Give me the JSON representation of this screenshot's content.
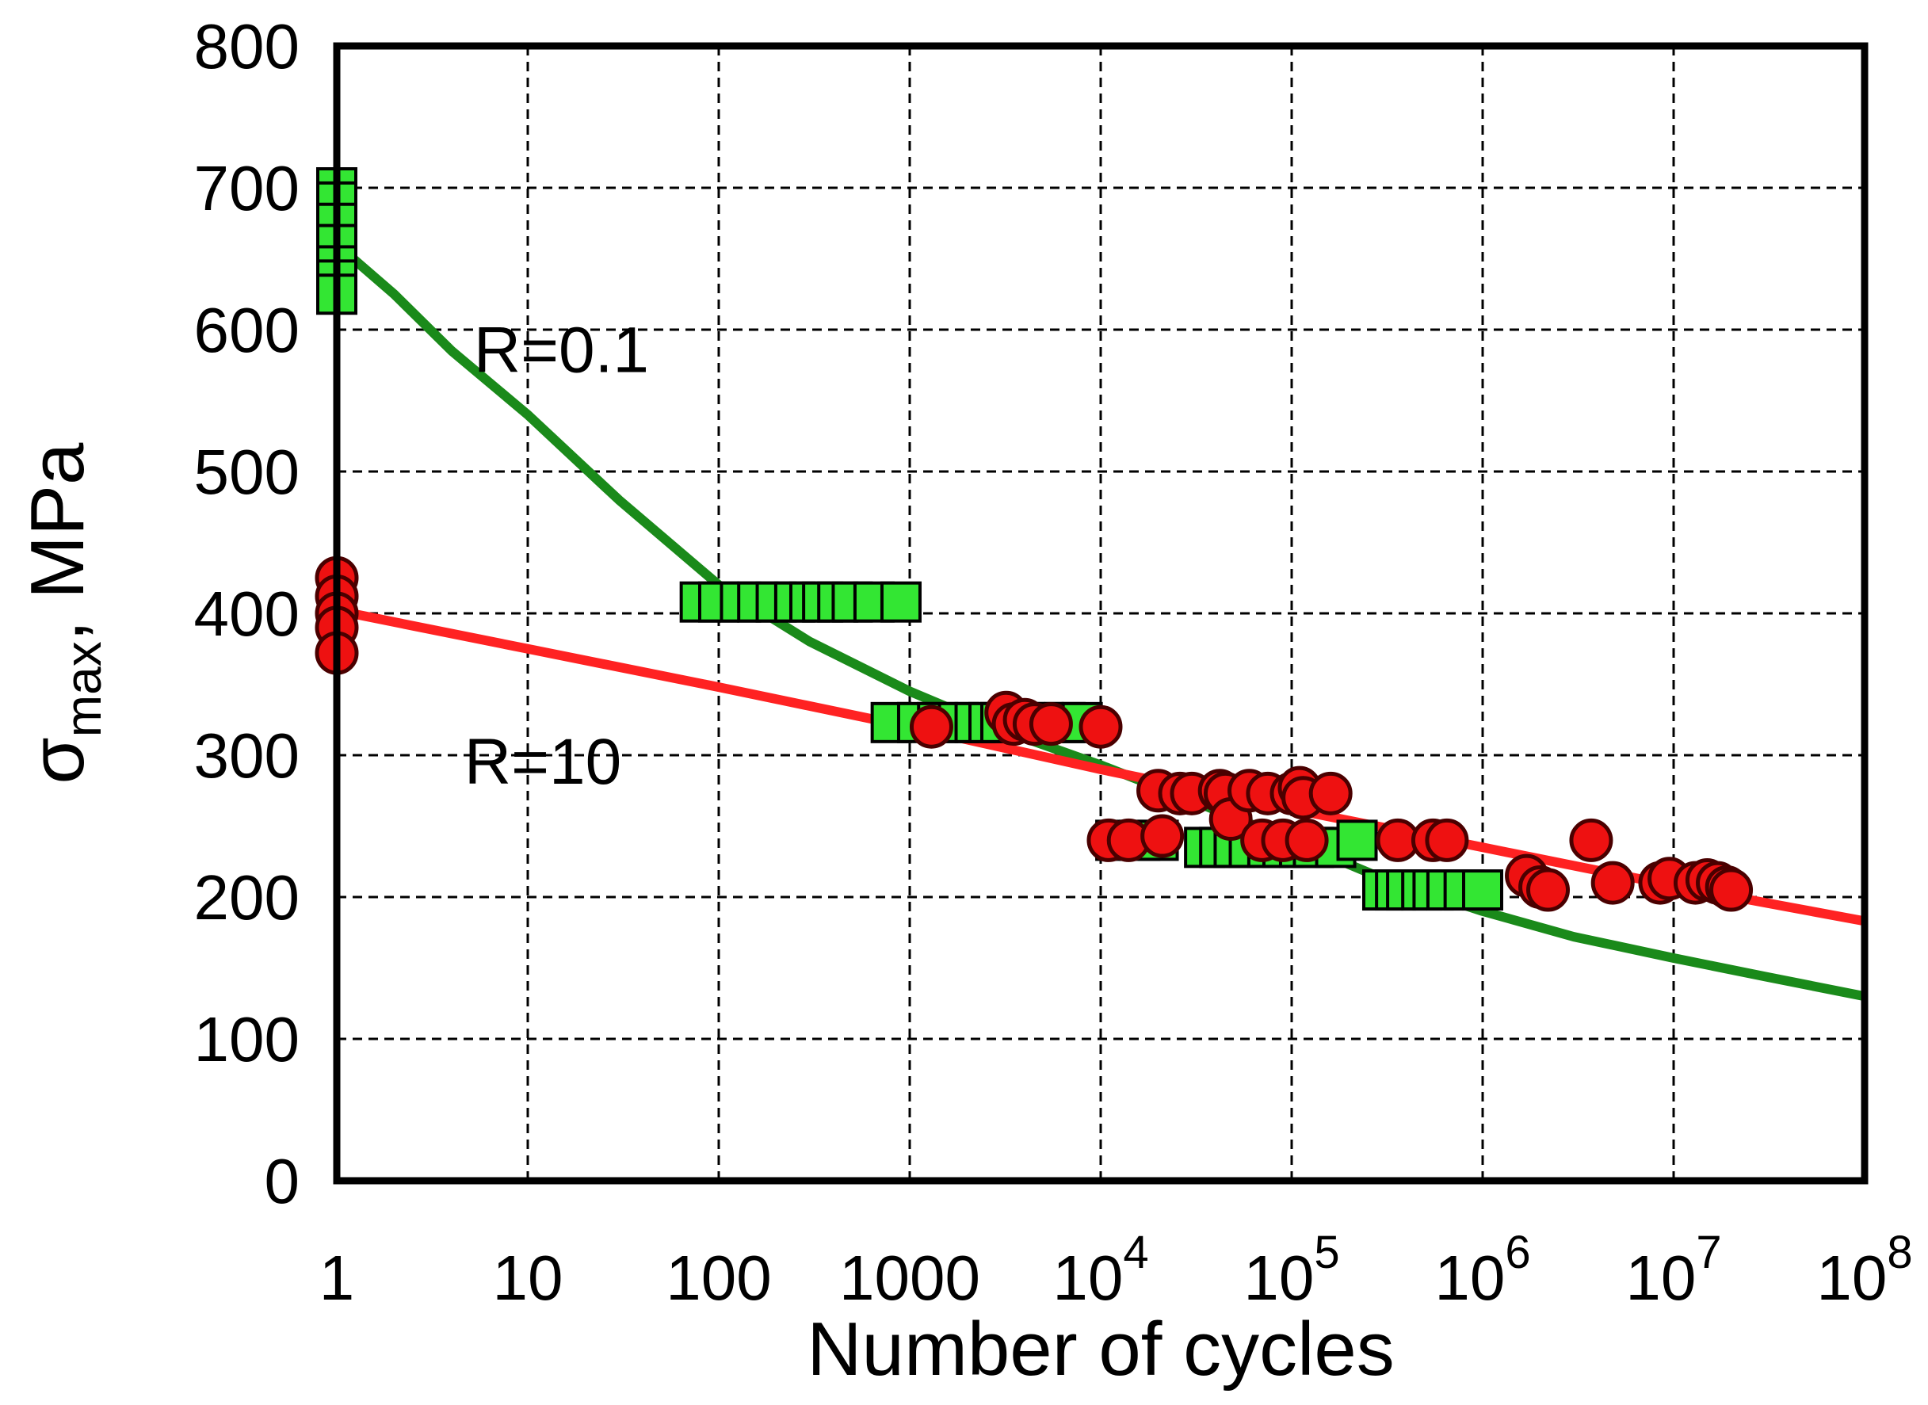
{
  "chart_data": {
    "type": "scatter",
    "xlabel": "Number of cycles",
    "ylabel": "σmax, MPa",
    "ylabel_main": "σ",
    "ylabel_sub": "max",
    "ylabel_suffix": ", MPa",
    "x_scale": "log",
    "xlim": [
      1,
      100000000
    ],
    "ylim": [
      0,
      800
    ],
    "grid": true,
    "x_ticks": [
      {
        "value": 1,
        "base": "1",
        "exp": ""
      },
      {
        "value": 10,
        "base": "10",
        "exp": ""
      },
      {
        "value": 100,
        "base": "100",
        "exp": ""
      },
      {
        "value": 1000,
        "base": "1000",
        "exp": ""
      },
      {
        "value": 10000,
        "base": "10",
        "exp": "4"
      },
      {
        "value": 100000,
        "base": "10",
        "exp": "5"
      },
      {
        "value": 1000000,
        "base": "10",
        "exp": "6"
      },
      {
        "value": 10000000,
        "base": "10",
        "exp": "7"
      },
      {
        "value": 100000000,
        "base": "10",
        "exp": "8"
      }
    ],
    "y_ticks": [
      0,
      100,
      200,
      300,
      400,
      500,
      600,
      700,
      800
    ],
    "annotations": [
      {
        "text": "R=0.1",
        "x": 15,
        "y": 570
      },
      {
        "text": "R=10",
        "x": 12,
        "y": 280
      }
    ],
    "series": [
      {
        "marker": "square",
        "color": "#33e633",
        "fit_color": "#1a8a1a",
        "points": [
          [
            1,
            700
          ],
          [
            1,
            690
          ],
          [
            1,
            675
          ],
          [
            1,
            660
          ],
          [
            1,
            645
          ],
          [
            1,
            635
          ],
          [
            1,
            625
          ],
          [
            80,
            408
          ],
          [
            100,
            408
          ],
          [
            130,
            408
          ],
          [
            160,
            408
          ],
          [
            200,
            408
          ],
          [
            250,
            408
          ],
          [
            300,
            408
          ],
          [
            350,
            408
          ],
          [
            420,
            408
          ],
          [
            500,
            408
          ],
          [
            650,
            408
          ],
          [
            900,
            408
          ],
          [
            800,
            323
          ],
          [
            1100,
            323
          ],
          [
            1400,
            323
          ],
          [
            1800,
            323
          ],
          [
            2200,
            323
          ],
          [
            2600,
            323
          ],
          [
            3000,
            323
          ],
          [
            4000,
            323
          ],
          [
            5000,
            323
          ],
          [
            6500,
            323
          ],
          [
            8000,
            323
          ],
          [
            12000,
            240
          ],
          [
            16000,
            240
          ],
          [
            20000,
            240
          ],
          [
            35000,
            235
          ],
          [
            42000,
            235
          ],
          [
            50000,
            235
          ],
          [
            60000,
            235
          ],
          [
            75000,
            235
          ],
          [
            90000,
            235
          ],
          [
            110000,
            235
          ],
          [
            130000,
            235
          ],
          [
            170000,
            235
          ],
          [
            220000,
            240
          ],
          [
            300000,
            205
          ],
          [
            350000,
            205
          ],
          [
            400000,
            205
          ],
          [
            480000,
            205
          ],
          [
            550000,
            205
          ],
          [
            650000,
            205
          ],
          [
            800000,
            205
          ],
          [
            1000000,
            205
          ]
        ],
        "fit": [
          [
            1,
            660
          ],
          [
            2,
            625
          ],
          [
            4,
            585
          ],
          [
            10,
            540
          ],
          [
            30,
            480
          ],
          [
            100,
            420
          ],
          [
            300,
            380
          ],
          [
            1000,
            345
          ],
          [
            3000,
            318
          ],
          [
            10000,
            293
          ],
          [
            30000,
            268
          ],
          [
            100000,
            240
          ],
          [
            300000,
            213
          ],
          [
            1000000,
            190
          ],
          [
            3000000,
            172
          ],
          [
            10000000,
            157
          ],
          [
            30000000,
            144
          ],
          [
            100000000,
            130
          ]
        ]
      },
      {
        "marker": "circle",
        "color": "#ee1111",
        "fit_color": "#ff2222",
        "points": [
          [
            1,
            425
          ],
          [
            1,
            412
          ],
          [
            1,
            400
          ],
          [
            1,
            390
          ],
          [
            1,
            372
          ],
          [
            1300,
            320
          ],
          [
            3200,
            330
          ],
          [
            3500,
            322
          ],
          [
            4000,
            325
          ],
          [
            4500,
            322
          ],
          [
            5500,
            322
          ],
          [
            10000,
            320
          ],
          [
            11000,
            240
          ],
          [
            14000,
            240
          ],
          [
            20000,
            275
          ],
          [
            21000,
            243
          ],
          [
            26000,
            273
          ],
          [
            30000,
            273
          ],
          [
            42000,
            275
          ],
          [
            45000,
            273
          ],
          [
            48000,
            255
          ],
          [
            60000,
            275
          ],
          [
            70000,
            240
          ],
          [
            75000,
            273
          ],
          [
            90000,
            240
          ],
          [
            100000,
            273
          ],
          [
            110000,
            277
          ],
          [
            115000,
            270
          ],
          [
            120000,
            240
          ],
          [
            160000,
            273
          ],
          [
            360000,
            240
          ],
          [
            550000,
            240
          ],
          [
            650000,
            240
          ],
          [
            1700000,
            215
          ],
          [
            2000000,
            207
          ],
          [
            2200000,
            205
          ],
          [
            3700000,
            240
          ],
          [
            4800000,
            210
          ],
          [
            8500000,
            210
          ],
          [
            9500000,
            213
          ],
          [
            13000000,
            210
          ],
          [
            15000000,
            212
          ],
          [
            17000000,
            210
          ],
          [
            19000000,
            207
          ],
          [
            20000000,
            205
          ]
        ],
        "fit": [
          [
            1,
            402
          ],
          [
            10,
            375
          ],
          [
            100,
            348
          ],
          [
            1000,
            320
          ],
          [
            10000,
            290
          ],
          [
            100000,
            262
          ],
          [
            1000000,
            235
          ],
          [
            10000000,
            208
          ],
          [
            100000000,
            183
          ]
        ]
      }
    ]
  }
}
